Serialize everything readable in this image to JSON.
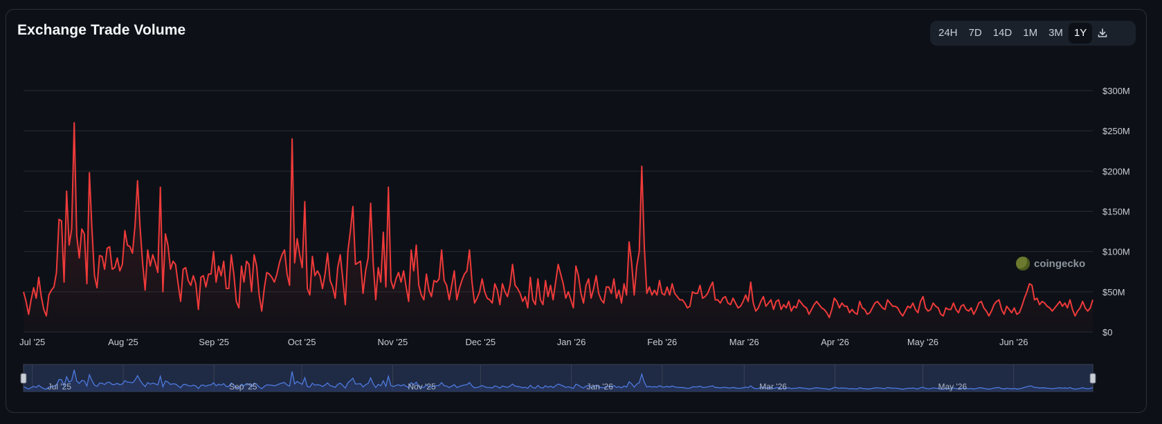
{
  "header": {
    "title": "Exchange Trade Volume"
  },
  "toolbar": {
    "ranges": [
      "24H",
      "7D",
      "14D",
      "1M",
      "3M",
      "1Y"
    ],
    "active": "1Y",
    "download_icon": "download-icon"
  },
  "watermark": {
    "text": "coingecko",
    "icon": "coingecko-logo-icon"
  },
  "colors": {
    "line": "#ef3a3a",
    "navigator_line": "#4d7be0",
    "navigator_bg": "#1f2a44",
    "grid": "#262c36",
    "background": "#0d1117"
  },
  "chart_data": {
    "type": "line",
    "title": "Exchange Trade Volume",
    "xlabel": "",
    "ylabel": "",
    "x_start": "2025-06-28",
    "x_end": "2026-06-28",
    "ylim": [
      0,
      300
    ],
    "y_unit": "USD millions",
    "y_ticks": [
      0,
      50,
      100,
      150,
      200,
      250,
      300
    ],
    "y_tick_labels": [
      "$0",
      "$50M",
      "$100M",
      "$150M",
      "$200M",
      "$250M",
      "$300M"
    ],
    "x_tick_labels": [
      "Jul '25",
      "Aug '25",
      "Sep '25",
      "Oct '25",
      "Nov '25",
      "Dec '25",
      "Jan '26",
      "Feb '26",
      "Mar '26",
      "Apr '26",
      "May '26",
      "Jun '26"
    ],
    "navigator_labels": [
      "Jul '25",
      "Sep '25",
      "Nov '25",
      "Jan '26",
      "Mar '26",
      "May '26"
    ],
    "grid": true,
    "legend": "none",
    "series": [
      {
        "values": [
          50,
          38,
          22,
          40,
          55,
          42,
          68,
          44,
          28,
          20,
          46,
          52,
          56,
          74,
          140,
          138,
          62,
          175,
          108,
          128,
          260,
          120,
          92,
          128,
          122,
          60,
          198,
          128,
          70,
          55,
          95,
          94,
          78,
          104,
          106,
          78,
          80,
          92,
          76,
          84,
          126,
          108,
          106,
          98,
          132,
          188,
          130,
          86,
          52,
          102,
          82,
          96,
          86,
          74,
          180,
          50,
          122,
          108,
          78,
          88,
          84,
          60,
          38,
          78,
          80,
          64,
          58,
          70,
          60,
          28,
          68,
          70,
          56,
          72,
          72,
          100,
          62,
          82,
          70,
          88,
          54,
          54,
          96,
          72,
          38,
          30,
          82,
          62,
          88,
          84,
          50,
          96,
          82,
          46,
          26,
          54,
          74,
          72,
          68,
          62,
          72,
          86,
          96,
          102,
          72,
          58,
          240,
          86,
          116,
          96,
          80,
          162,
          54,
          46,
          94,
          70,
          76,
          70,
          54,
          72,
          98,
          64,
          56,
          42,
          80,
          96,
          66,
          34,
          100,
          126,
          156,
          84,
          86,
          88,
          48,
          76,
          92,
          160,
          86,
          40,
          80,
          62,
          124,
          56,
          180,
          64,
          54,
          66,
          74,
          62,
          76,
          56,
          38,
          102,
          76,
          108,
          58,
          46,
          40,
          72,
          52,
          44,
          64,
          62,
          66,
          102,
          64,
          58,
          40,
          58,
          76,
          40,
          54,
          64,
          72,
          76,
          102,
          62,
          36,
          42,
          50,
          66,
          50,
          42,
          40,
          36,
          60,
          52,
          34,
          60,
          50,
          44,
          58,
          84,
          58,
          54,
          48,
          38,
          44,
          30,
          68,
          40,
          34,
          66,
          40,
          34,
          64,
          44,
          58,
          40,
          62,
          84,
          72,
          60,
          42,
          50,
          40,
          30,
          82,
          70,
          48,
          36,
          58,
          66,
          42,
          54,
          70,
          48,
          40,
          36,
          56,
          56,
          48,
          66,
          42,
          52,
          36,
          60,
          46,
          112,
          86,
          46,
          82,
          100,
          206,
          106,
          48,
          56,
          46,
          52,
          46,
          64,
          48,
          46,
          56,
          46,
          60,
          48,
          44,
          40,
          40,
          36,
          30,
          32,
          50,
          48,
          48,
          58,
          42,
          44,
          48,
          56,
          62,
          40,
          40,
          36,
          42,
          44,
          36,
          34,
          42,
          36,
          30,
          32,
          38,
          46,
          38,
          62,
          36,
          26,
          30,
          38,
          44,
          32,
          36,
          40,
          28,
          38,
          40,
          28,
          34,
          30,
          38,
          26,
          32,
          30,
          40,
          36,
          32,
          30,
          22,
          28,
          34,
          38,
          34,
          30,
          28,
          24,
          18,
          28,
          42,
          38,
          30,
          36,
          32,
          32,
          24,
          28,
          24,
          22,
          38,
          30,
          28,
          22,
          24,
          30,
          36,
          38,
          34,
          30,
          28,
          40,
          36,
          32,
          32,
          30,
          24,
          20,
          26,
          32,
          30,
          36,
          28,
          24,
          38,
          44,
          30,
          26,
          28,
          36,
          32,
          30,
          22,
          20,
          30,
          28,
          28,
          36,
          28,
          24,
          32,
          34,
          28,
          26,
          30,
          22,
          28,
          36,
          38,
          30,
          26,
          20,
          26,
          34,
          38,
          40,
          28,
          22,
          32,
          28,
          24,
          30,
          22,
          24,
          32,
          42,
          50,
          60,
          58,
          40,
          42,
          34,
          38,
          36,
          32,
          30,
          26,
          30,
          34,
          38,
          32,
          36,
          30,
          40,
          28,
          20,
          26,
          30,
          38,
          30,
          26,
          30,
          40
        ]
      }
    ]
  }
}
